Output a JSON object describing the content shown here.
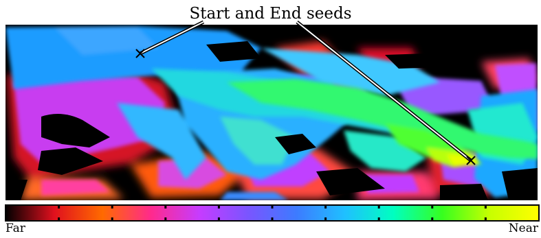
{
  "annotation": {
    "text": "Start and End seeds"
  },
  "colorbar": {
    "left_label": "Far",
    "right_label": "Near",
    "stops": [
      "#000000",
      "#e0101e",
      "#ff6a00",
      "#ff2a8c",
      "#c63cff",
      "#7a55ff",
      "#3d7bff",
      "#1fc0ff",
      "#00ffc0",
      "#36ff1f",
      "#c8ff00",
      "#ffff00"
    ]
  },
  "colors": {
    "background": "#000000",
    "text": "#000000"
  },
  "markers": [
    {
      "name": "start-seed",
      "symbol": "×"
    },
    {
      "name": "end-seed",
      "symbol": "×"
    }
  ]
}
